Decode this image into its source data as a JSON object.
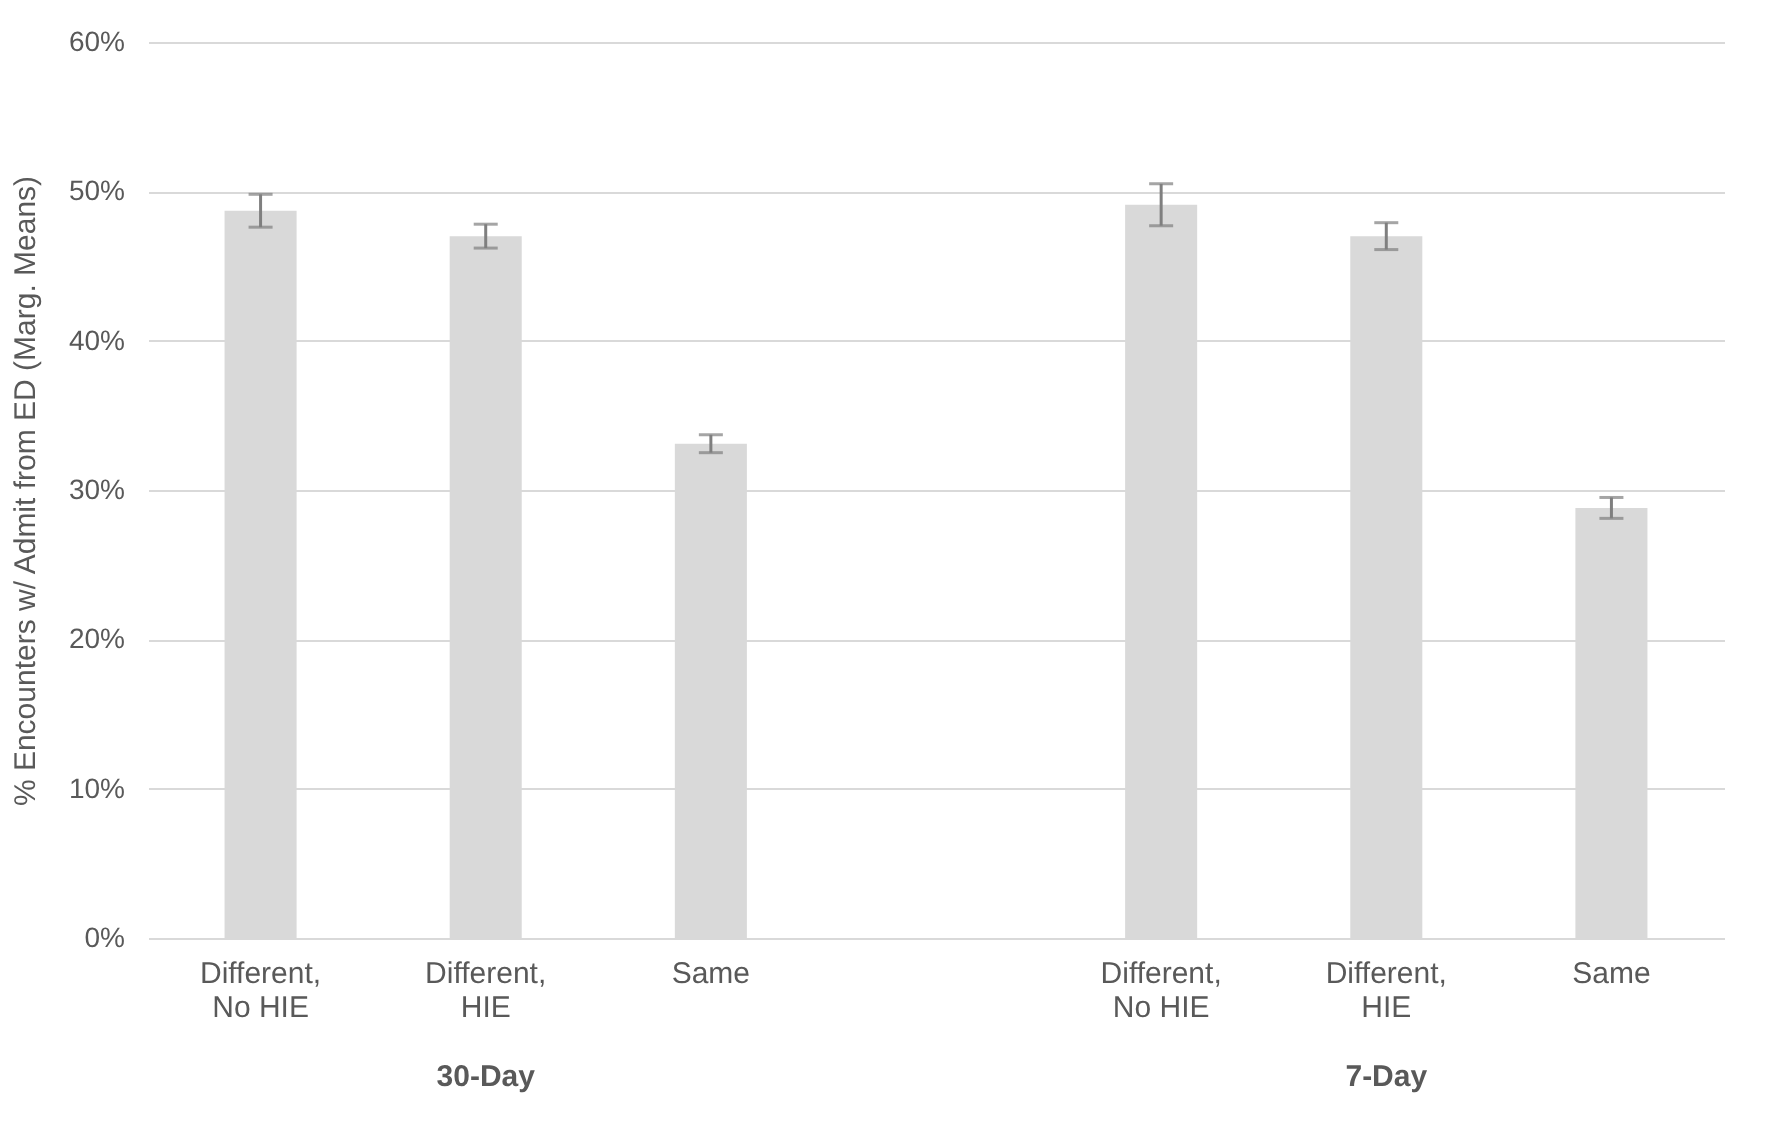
{
  "chart_data": {
    "type": "bar",
    "ylabel": "% Encounters w/ Admit from ED (Marg. Means)",
    "categories": [
      "Different, No HIE",
      "Different, HIE",
      "Same",
      null,
      "Different, No HIE",
      "Different, HIE",
      "Same"
    ],
    "values": [
      48.7,
      47.0,
      33.1,
      null,
      49.1,
      47.0,
      28.8
    ],
    "errors": [
      1.1,
      0.8,
      0.6,
      null,
      1.4,
      0.9,
      0.7
    ],
    "color": "#d9d9d9",
    "ylim": [
      0,
      60
    ],
    "yticks": [
      {
        "value": 0,
        "label": "0%"
      },
      {
        "value": 10,
        "label": "10%"
      },
      {
        "value": 20,
        "label": "20%"
      },
      {
        "value": 30,
        "label": "30%"
      },
      {
        "value": 40,
        "label": "40%"
      },
      {
        "value": 50,
        "label": "50%"
      },
      {
        "value": 60,
        "label": "60%"
      }
    ],
    "grid": "y",
    "annotations": [
      "30-Day",
      "7-Day"
    ]
  }
}
